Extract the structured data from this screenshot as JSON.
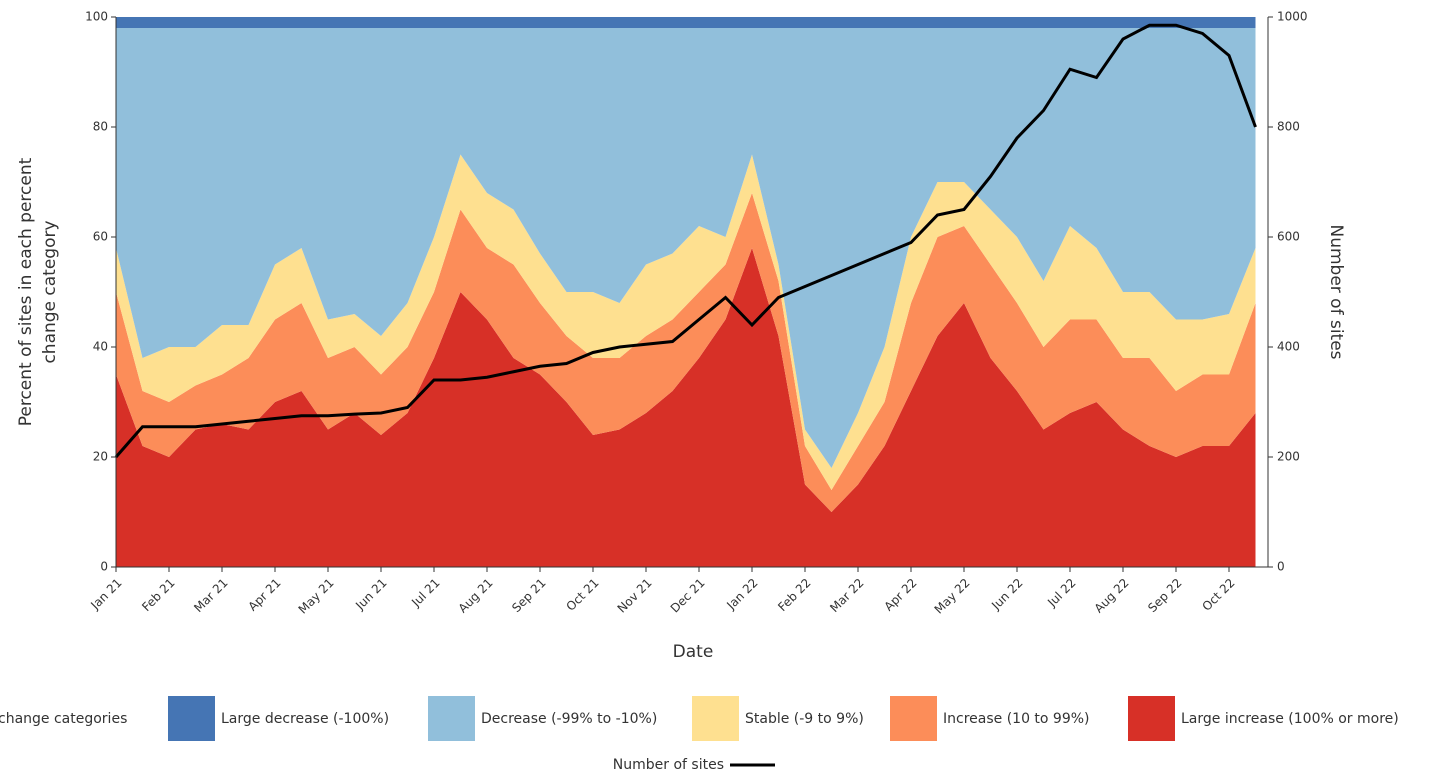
{
  "chart_data": {
    "type": "stacked-area",
    "xlabel": "Date",
    "ylabel_lines": [
      "Percent of sites in each percent",
      "change category"
    ],
    "y2label": "Number of sites",
    "legend_title": "change categories",
    "categories": [
      "Jan 21",
      null,
      "Feb 21",
      null,
      "Mar 21",
      null,
      "Apr 21",
      null,
      "May 21",
      null,
      "Jun 21",
      null,
      "Jul 21",
      null,
      "Aug 21",
      null,
      "Sep 21",
      null,
      "Oct 21",
      null,
      "Nov 21",
      null,
      "Dec 21",
      null,
      "Jan 22",
      null,
      "Feb 22",
      null,
      "Mar 22",
      null,
      "Apr 22",
      null,
      "May 22",
      null,
      "Jun 22",
      null,
      "Jul 22",
      null,
      "Aug 22",
      null,
      "Sep 22",
      null,
      "Oct 22",
      null
    ],
    "ylim": [
      0,
      100
    ],
    "yticks": [
      0,
      20,
      40,
      60,
      80,
      100
    ],
    "y2lim": [
      0,
      1000
    ],
    "y2ticks": [
      0,
      200,
      400,
      600,
      800,
      1000
    ],
    "series": [
      {
        "name": "Large decrease (-100%)",
        "color": "#4575b4",
        "values": [
          2,
          2,
          2,
          2,
          2,
          2,
          2,
          2,
          2,
          2,
          2,
          2,
          2,
          2,
          2,
          2,
          2,
          2,
          2,
          2,
          2,
          2,
          2,
          2,
          2,
          2,
          2,
          2,
          2,
          2,
          2,
          2,
          2,
          2,
          2,
          2,
          2,
          2,
          2,
          2,
          2,
          2,
          2,
          2
        ]
      },
      {
        "name": "Decrease (-99% to -10%)",
        "color": "#91bfdb",
        "values": [
          40,
          60,
          58,
          58,
          54,
          54,
          43,
          40,
          53,
          52,
          56,
          50,
          38,
          23,
          30,
          33,
          41,
          48,
          48,
          50,
          43,
          41,
          36,
          38,
          23,
          43,
          73,
          80,
          70,
          58,
          38,
          28,
          28,
          33,
          38,
          46,
          36,
          40,
          48,
          48,
          53,
          53,
          52,
          40
        ]
      },
      {
        "name": "Stable (-9 to 9%)",
        "color": "#fee090",
        "values": [
          8,
          6,
          10,
          7,
          9,
          6,
          10,
          10,
          7,
          6,
          7,
          8,
          10,
          10,
          10,
          10,
          9,
          8,
          12,
          10,
          13,
          12,
          12,
          5,
          7,
          3,
          3,
          4,
          6,
          10,
          12,
          10,
          8,
          10,
          12,
          12,
          17,
          13,
          12,
          12,
          13,
          10,
          11,
          10
        ]
      },
      {
        "name": "Increase (10 to 99%)",
        "color": "#fc8d59",
        "values": [
          15,
          10,
          10,
          8,
          9,
          13,
          15,
          16,
          13,
          12,
          11,
          12,
          12,
          15,
          13,
          17,
          13,
          12,
          14,
          13,
          14,
          13,
          12,
          10,
          10,
          10,
          7,
          4,
          7,
          8,
          16,
          18,
          14,
          17,
          16,
          15,
          17,
          15,
          13,
          16,
          12,
          13,
          13,
          20
        ]
      },
      {
        "name": "Large increase (100% or more)",
        "color": "#d73027",
        "values": [
          35,
          22,
          20,
          25,
          26,
          25,
          30,
          32,
          25,
          28,
          24,
          28,
          38,
          50,
          45,
          38,
          35,
          30,
          24,
          25,
          28,
          32,
          38,
          45,
          58,
          42,
          15,
          10,
          15,
          22,
          32,
          42,
          48,
          38,
          32,
          25,
          28,
          30,
          25,
          22,
          20,
          22,
          22,
          28
        ]
      },
      {
        "name": "Number of sites",
        "color": "#000000",
        "axis": "y2",
        "values": [
          200,
          255,
          255,
          255,
          260,
          265,
          270,
          275,
          275,
          278,
          280,
          290,
          340,
          340,
          345,
          355,
          365,
          370,
          390,
          400,
          405,
          410,
          450,
          490,
          440,
          490,
          510,
          530,
          550,
          570,
          590,
          640,
          650,
          710,
          780,
          830,
          905,
          890,
          960,
          985,
          985,
          970,
          930,
          800
        ]
      }
    ]
  }
}
